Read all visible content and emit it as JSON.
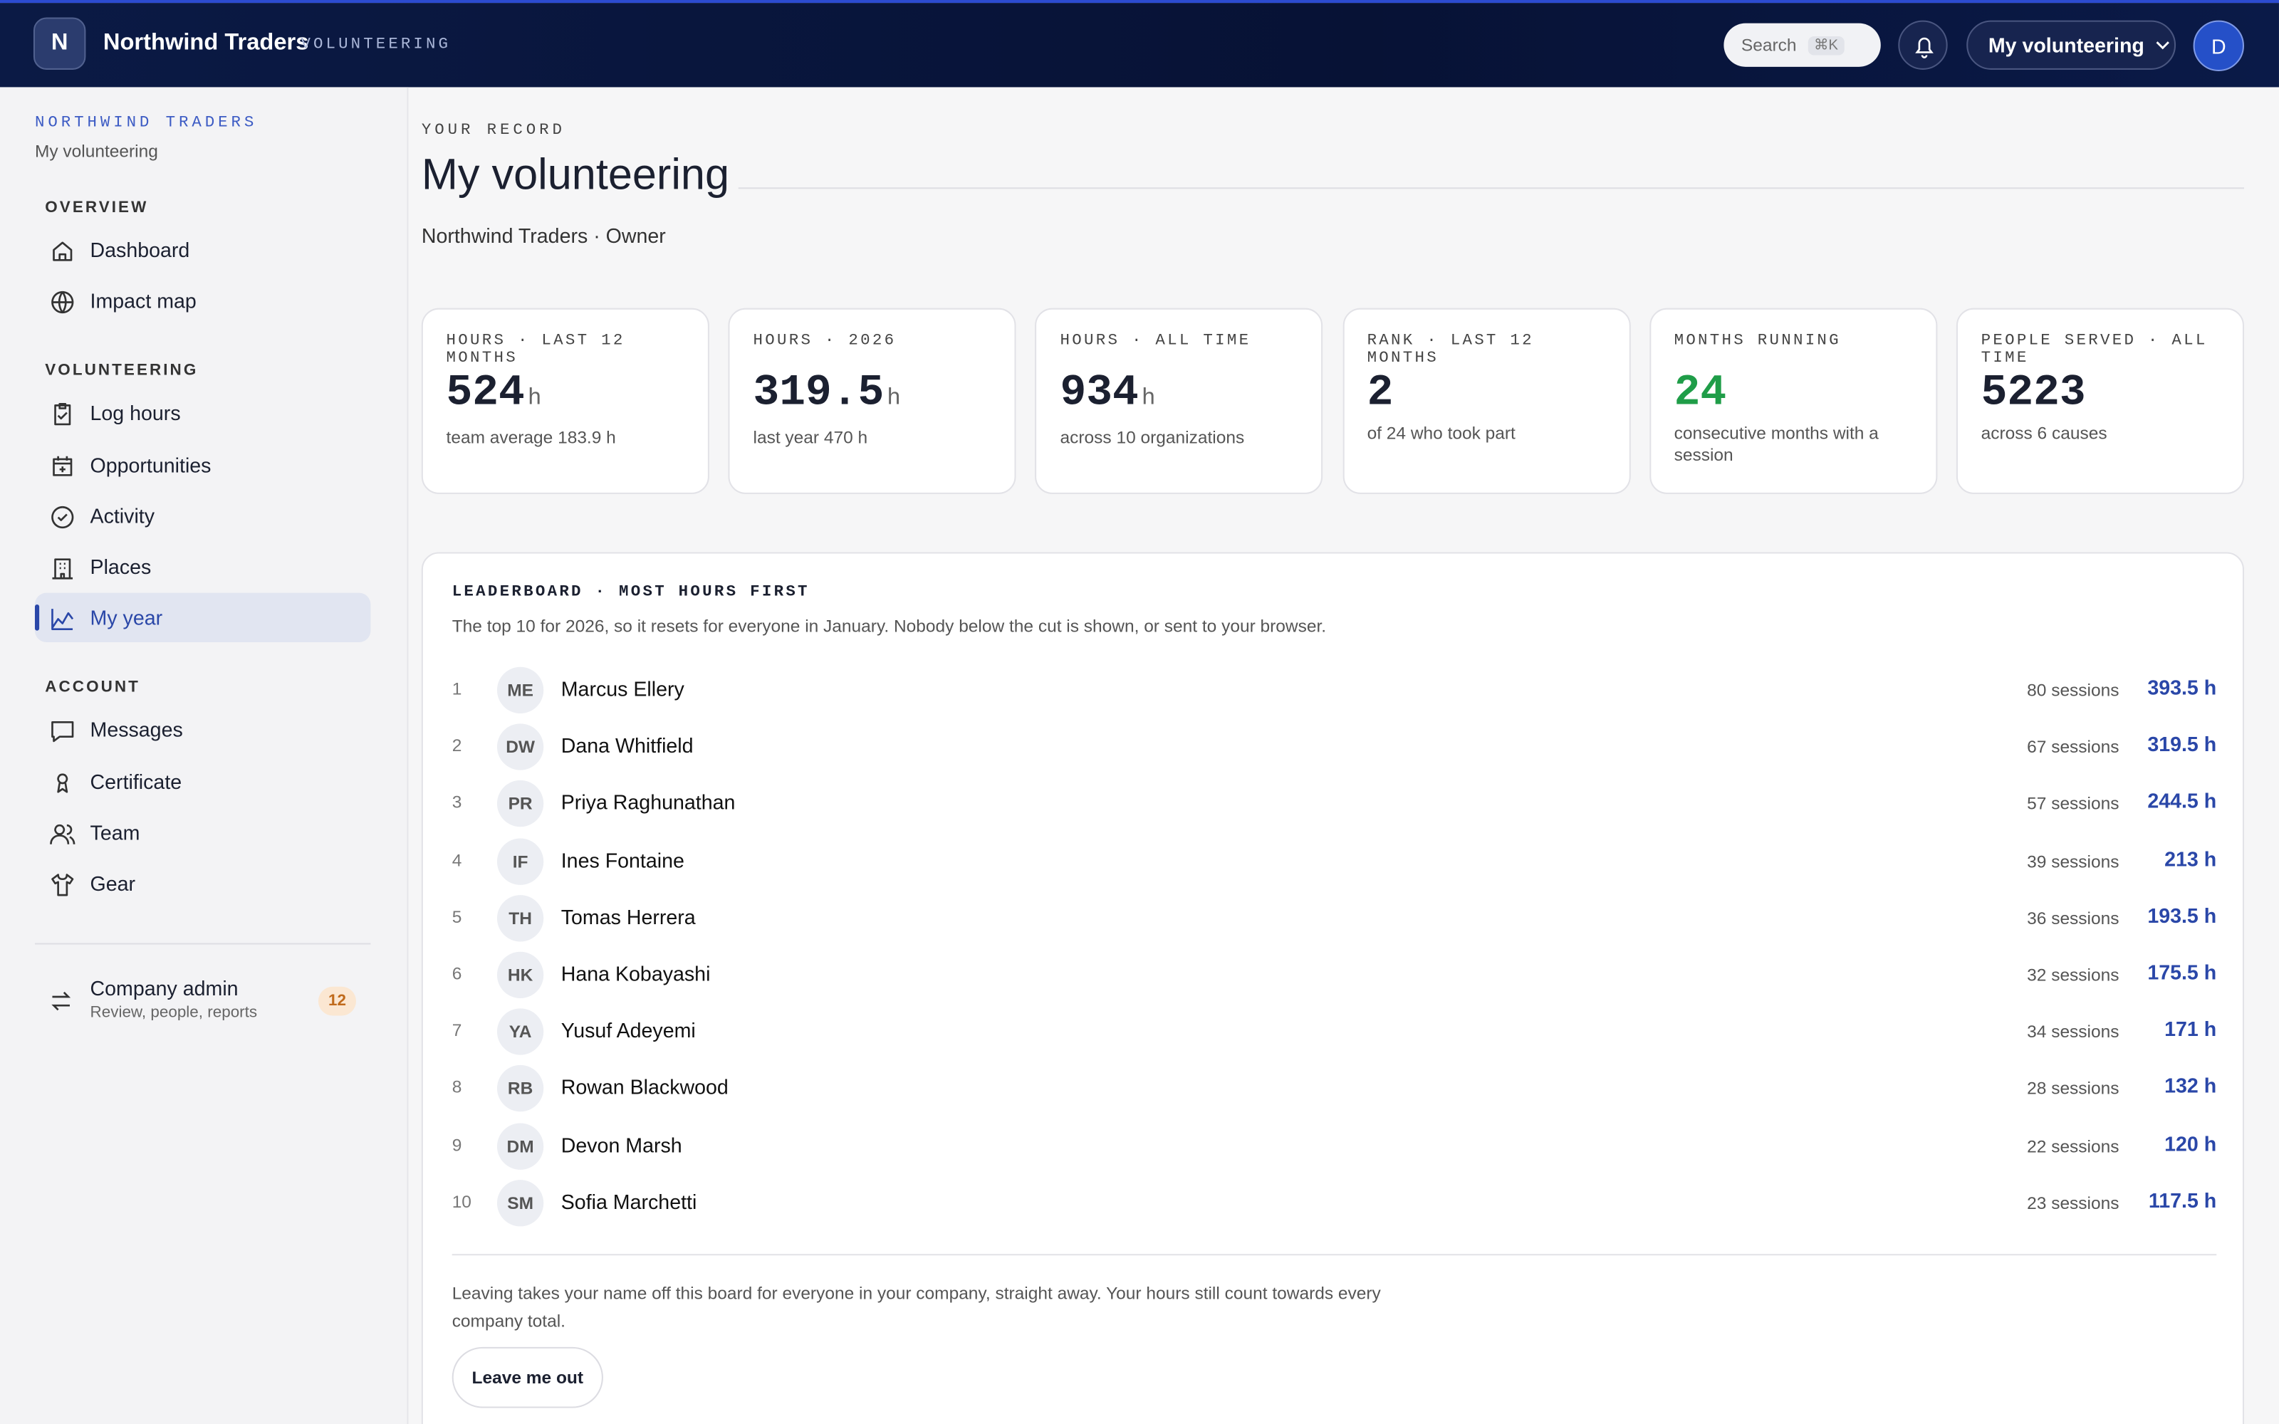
{
  "header": {
    "logo_letter": "N",
    "brand": "Northwind Traders",
    "product": "VOLUNTEERING",
    "search": "Search",
    "shortcut": "⌘K",
    "menu": "My volunteering",
    "avatar": "D"
  },
  "sidebar": {
    "org": "NORTHWIND TRADERS",
    "org_sub": "My volunteering",
    "sections": [
      {
        "title": "OVERVIEW",
        "items": [
          "Dashboard",
          "Impact map"
        ]
      },
      {
        "title": "VOLUNTEERING",
        "items": [
          "Log hours",
          "Opportunities",
          "Activity",
          "Places",
          "My year"
        ]
      },
      {
        "title": "ACCOUNT",
        "items": [
          "Messages",
          "Certificate",
          "Team",
          "Gear"
        ]
      }
    ],
    "admin": {
      "title": "Company admin",
      "sub": "Review, people, reports",
      "badge": "12"
    }
  },
  "page": {
    "eyebrow": "YOUR RECORD",
    "title": "My volunteering",
    "subtitle": "Northwind Traders · Owner"
  },
  "stats": [
    {
      "label": "HOURS · LAST 12 MONTHS",
      "value": "524",
      "unit": "h",
      "note": "team average 183.9 h"
    },
    {
      "label": "HOURS · 2026",
      "value": "319.5",
      "unit": "h",
      "note": "last year 470 h"
    },
    {
      "label": "HOURS · ALL TIME",
      "value": "934",
      "unit": "h",
      "note": "across 10 organizations"
    },
    {
      "label": "RANK · LAST 12 MONTHS",
      "value": "2",
      "note": "of 24 who took part"
    },
    {
      "label": "MONTHS RUNNING",
      "value": "24",
      "note": "consecutive months with a session"
    },
    {
      "label": "PEOPLE SERVED · ALL TIME",
      "value": "5223",
      "note": "across 6 causes"
    }
  ],
  "leaderboard": {
    "title": "LEADERBOARD · MOST HOURS FIRST",
    "subtitle": "The top 10 for 2026, so it resets for everyone in January. Nobody below the cut is shown, or sent to your browser.",
    "rows": [
      {
        "rank": "1",
        "initials": "ME",
        "name": "Marcus Ellery",
        "sessions": "80 sessions",
        "hours": "393.5 h"
      },
      {
        "rank": "2",
        "initials": "DW",
        "name": "Dana Whitfield",
        "sessions": "67 sessions",
        "hours": "319.5 h"
      },
      {
        "rank": "3",
        "initials": "PR",
        "name": "Priya Raghunathan",
        "sessions": "57 sessions",
        "hours": "244.5 h"
      },
      {
        "rank": "4",
        "initials": "IF",
        "name": "Ines Fontaine",
        "sessions": "39 sessions",
        "hours": "213 h"
      },
      {
        "rank": "5",
        "initials": "TH",
        "name": "Tomas Herrera",
        "sessions": "36 sessions",
        "hours": "193.5 h"
      },
      {
        "rank": "6",
        "initials": "HK",
        "name": "Hana Kobayashi",
        "sessions": "32 sessions",
        "hours": "175.5 h"
      },
      {
        "rank": "7",
        "initials": "YA",
        "name": "Yusuf Adeyemi",
        "sessions": "34 sessions",
        "hours": "171 h"
      },
      {
        "rank": "8",
        "initials": "RB",
        "name": "Rowan Blackwood",
        "sessions": "28 sessions",
        "hours": "132 h"
      },
      {
        "rank": "9",
        "initials": "DM",
        "name": "Devon Marsh",
        "sessions": "22 sessions",
        "hours": "120 h"
      },
      {
        "rank": "10",
        "initials": "SM",
        "name": "Sofia Marchetti",
        "sessions": "23 sessions",
        "hours": "117.5 h"
      }
    ],
    "footer": "Leaving takes your name off this board for everyone in your company, straight away. Your hours still count towards every company total.",
    "button": "Leave me out"
  }
}
